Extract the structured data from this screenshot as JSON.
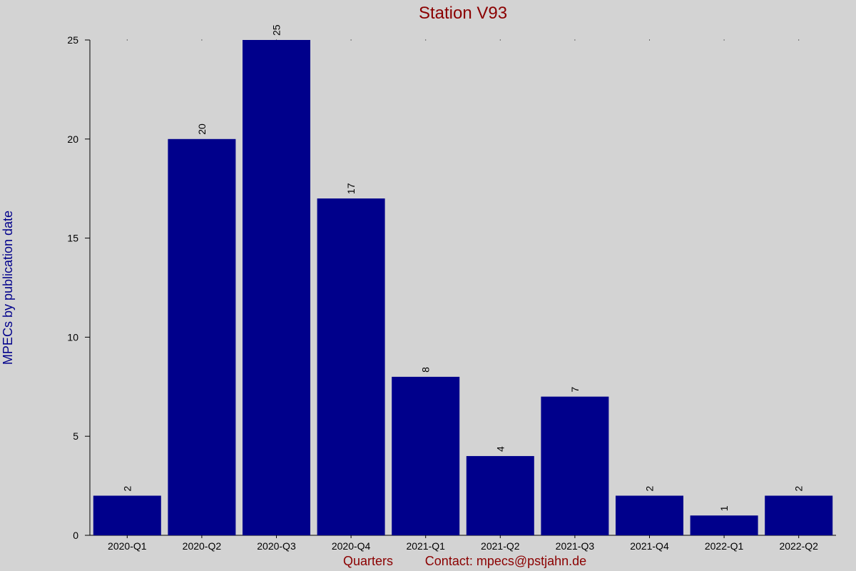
{
  "chart_data": {
    "type": "bar",
    "title": "Station V93",
    "xlabel": "Quarters",
    "ylabel": "MPECs by publication date",
    "contact": "Contact: mpecs@pstjahn.de",
    "categories": [
      "2020-Q1",
      "2020-Q2",
      "2020-Q3",
      "2020-Q4",
      "2021-Q1",
      "2021-Q2",
      "2021-Q3",
      "2021-Q4",
      "2022-Q1",
      "2022-Q2"
    ],
    "values": [
      2,
      20,
      25,
      17,
      8,
      4,
      7,
      2,
      1,
      2
    ],
    "ylim": [
      0,
      25
    ],
    "yticks": [
      0,
      5,
      10,
      15,
      20,
      25
    ],
    "grid": false,
    "bar_color": "#00008b",
    "background_color": "#d3d3d3",
    "title_color": "#8b0000",
    "xlabel_color": "#8b0000",
    "ylabel_color": "#00008b"
  }
}
